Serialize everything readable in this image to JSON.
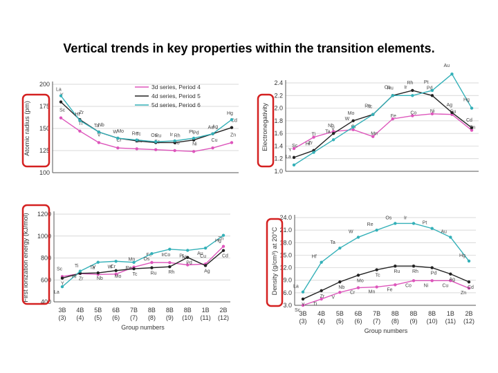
{
  "title": "Vertical trends in key properties within the transition elements.",
  "colors": {
    "period4": "#dd55bb",
    "period5": "#222222",
    "period6": "#33b0b8",
    "highlight": "#d42020",
    "grid": "#cccccc",
    "axis": "#555555",
    "label": "#333333"
  },
  "group_numbers": {
    "codes": [
      "3B",
      "4B",
      "5B",
      "6B",
      "7B",
      "8B",
      "8B",
      "8B",
      "1B",
      "2B"
    ],
    "numbers": [
      "(3)",
      "(4)",
      "(5)",
      "(6)",
      "(7)",
      "(8)",
      "(9)",
      "(10)",
      "(11)",
      "(12)"
    ],
    "label": "Group numbers"
  },
  "chart_data": [
    {
      "id": "radius",
      "type": "line",
      "ylabel": "Atomic radius (pm)",
      "ylim": [
        100,
        200
      ],
      "yticks": [
        "100",
        "125",
        "150",
        "175",
        "200"
      ],
      "legend": [
        "3d series, Period 4",
        "4d series, Period 5",
        "5d series, Period 6"
      ],
      "legend_position": "top-right",
      "series": [
        {
          "name": "3d series, Period 4",
          "labels": [
            "Sc",
            "Ti",
            "V",
            "Cr",
            "Mn",
            "Fe",
            "Co",
            "Ni",
            "Cu",
            "Zn"
          ],
          "values": [
            162,
            147,
            134,
            128,
            127,
            126,
            125,
            124,
            128,
            134
          ]
        },
        {
          "name": "4d series, Period 5",
          "labels": [
            "Y",
            "Zr",
            "Nb",
            "Mo",
            "Tc",
            "Ru",
            "Rh",
            "Pd",
            "Ag",
            "Cd"
          ],
          "values": [
            180,
            160,
            146,
            139,
            136,
            134,
            134,
            137,
            144,
            151
          ]
        },
        {
          "name": "5d series, Period 6",
          "labels": [
            "La",
            "Hf",
            "Ta",
            "W",
            "Re",
            "Os",
            "Ir",
            "Pt",
            "Au",
            "Hg"
          ],
          "values": [
            187,
            159,
            146,
            139,
            137,
            135,
            136,
            139,
            144,
            160
          ]
        }
      ]
    },
    {
      "id": "electronegativity",
      "type": "line",
      "ylabel": "Electronegativity",
      "ylim": [
        1.0,
        2.4
      ],
      "yticks": [
        "1.0",
        "1.2",
        "1.4",
        "1.6",
        "1.8",
        "2.0",
        "2.2",
        "2.4"
      ],
      "series": [
        {
          "name": "3d series, Period 4",
          "labels": [
            "Sc",
            "Ti",
            "V",
            "Cr",
            "Mn",
            "Fe",
            "Co",
            "Ni",
            "Cu",
            "Zn"
          ],
          "values": [
            1.36,
            1.54,
            1.63,
            1.66,
            1.55,
            1.83,
            1.88,
            1.91,
            1.9,
            1.65
          ]
        },
        {
          "name": "4d series, Period 5",
          "labels": [
            "Y",
            "Zr",
            "Nb",
            "Mo",
            "Tc",
            "Ru",
            "Rh",
            "Pd",
            "Ag",
            "Cd"
          ],
          "values": [
            1.22,
            1.33,
            1.6,
            1.8,
            1.9,
            2.2,
            2.28,
            2.2,
            1.93,
            1.69
          ]
        },
        {
          "name": "5d series, Period 6",
          "labels": [
            "La",
            "Hf",
            "Ta",
            "W",
            "Re",
            "Os",
            "Ir",
            "Pt",
            "Au",
            "Hg"
          ],
          "values": [
            1.1,
            1.3,
            1.5,
            1.7,
            1.9,
            2.2,
            2.2,
            2.28,
            2.54,
            2.0
          ]
        }
      ]
    },
    {
      "id": "ionization",
      "type": "line",
      "ylabel": "First ionization energy (kJ/mol)",
      "ylim": [
        400,
        1200
      ],
      "yticks": [
        "400",
        "600",
        "800",
        "1000",
        "1200"
      ],
      "series": [
        {
          "name": "3d series, Period 4",
          "labels": [
            "Sc",
            "Ti",
            "V",
            "Cr",
            "Mn",
            "Fe",
            "Co",
            "Ni",
            "Cu",
            "Zn"
          ],
          "values": [
            631,
            658,
            650,
            653,
            717,
            759,
            758,
            737,
            745,
            906
          ]
        },
        {
          "name": "4d series, Period 5",
          "labels": [
            "Y",
            "Zr",
            "Nb",
            "Mo",
            "Tc",
            "Ru",
            "Rh",
            "Pd",
            "Ag",
            "Cd"
          ],
          "values": [
            616,
            660,
            664,
            685,
            702,
            711,
            720,
            805,
            731,
            868
          ]
        },
        {
          "name": "5d series, Period 6",
          "labels": [
            "La",
            "Hf",
            "Ta",
            "W",
            "Re",
            "Os",
            "Ir",
            "Pt",
            "Au",
            "Hg"
          ],
          "values": [
            538,
            680,
            761,
            770,
            760,
            840,
            880,
            870,
            890,
            1007
          ]
        }
      ]
    },
    {
      "id": "density",
      "type": "line",
      "ylabel": "Density (g/cm³) at 20°C",
      "ylim": [
        3.0,
        24.0
      ],
      "yticks": [
        "3.0",
        "6.0",
        "9.0",
        "12.0",
        "15.0",
        "18.0",
        "21.0",
        "24.0"
      ],
      "series": [
        {
          "name": "3d series, Period 4",
          "labels": [
            "Sc",
            "Ti",
            "V",
            "Cr",
            "Mn",
            "Fe",
            "Co",
            "Ni",
            "Cu",
            "Zn"
          ],
          "values": [
            3.0,
            4.5,
            6.1,
            7.2,
            7.4,
            7.9,
            8.9,
            8.9,
            8.9,
            7.1
          ]
        },
        {
          "name": "4d series, Period 5",
          "labels": [
            "Y",
            "Zr",
            "Nb",
            "Mo",
            "Tc",
            "Ru",
            "Rh",
            "Pd",
            "Ag",
            "Cd"
          ],
          "values": [
            4.5,
            6.5,
            8.6,
            10.2,
            11.5,
            12.4,
            12.4,
            12.0,
            10.5,
            8.6
          ]
        },
        {
          "name": "5d series, Period 6",
          "labels": [
            "La",
            "Hf",
            "Ta",
            "W",
            "Re",
            "Os",
            "Ir",
            "Pt",
            "Au",
            "Hg"
          ],
          "values": [
            6.2,
            13.3,
            16.7,
            19.3,
            21.0,
            22.6,
            22.6,
            21.4,
            19.3,
            13.6
          ]
        }
      ]
    }
  ]
}
